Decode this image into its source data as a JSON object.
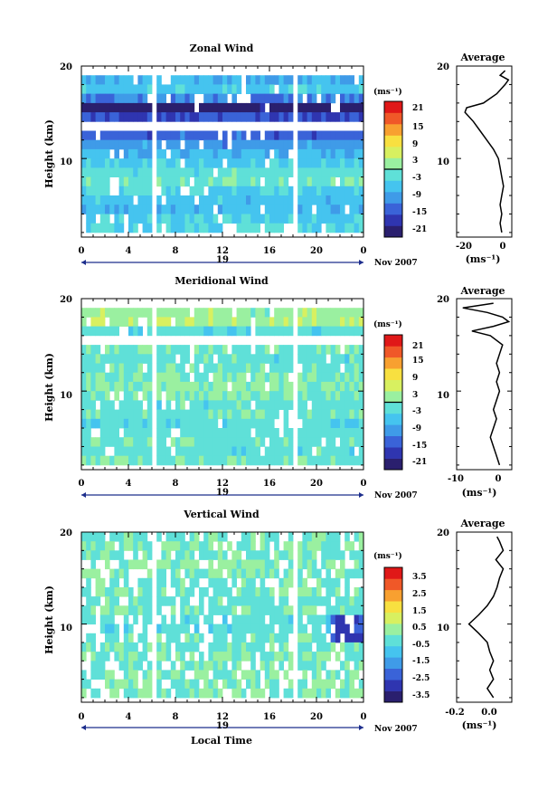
{
  "panels": [
    {
      "title": "Zonal Wind",
      "ylabel": "Height (km)",
      "date_label": "Nov 2007",
      "day_label": "19",
      "x_ticks": [
        "0",
        "4",
        "8",
        "12",
        "16",
        "20",
        "0"
      ],
      "y_ticks": [
        "20",
        "10"
      ],
      "colorbar": {
        "unit": "(ms⁻¹)",
        "ticks": [
          "21",
          "15",
          "9",
          "3",
          "-3",
          "-9",
          "-15",
          "-21"
        ]
      },
      "profile": {
        "title": "Average",
        "x_ticks": [
          "-20",
          "0"
        ],
        "y_ticks": [
          "20",
          "10"
        ],
        "xlabel": "(ms⁻¹)"
      }
    },
    {
      "title": "Meridional Wind",
      "ylabel": "Height (km)",
      "date_label": "Nov 2007",
      "day_label": "19",
      "x_ticks": [
        "0",
        "4",
        "8",
        "12",
        "16",
        "20",
        "0"
      ],
      "y_ticks": [
        "20",
        "10"
      ],
      "colorbar": {
        "unit": "(ms⁻¹)",
        "ticks": [
          "21",
          "15",
          "9",
          "3",
          "-3",
          "-9",
          "-15",
          "-21"
        ]
      },
      "profile": {
        "title": "Average",
        "x_ticks": [
          "-10",
          "0"
        ],
        "y_ticks": [
          "20",
          "10"
        ],
        "xlabel": "(ms⁻¹)"
      }
    },
    {
      "title": "Vertical Wind",
      "ylabel": "Height (km)",
      "date_label": "Nov 2007",
      "day_label": "19",
      "x_ticks": [
        "0",
        "4",
        "8",
        "12",
        "16",
        "20",
        "0"
      ],
      "y_ticks": [
        "20",
        "10"
      ],
      "colorbar": {
        "unit": "(ms⁻¹)",
        "ticks": [
          "3.5",
          "2.5",
          "1.5",
          "0.5",
          "-0.5",
          "-1.5",
          "-2.5",
          "-3.5"
        ]
      },
      "profile": {
        "title": "Average",
        "x_ticks": [
          "-0.2",
          "0.0"
        ],
        "y_ticks": [
          "20",
          "10"
        ],
        "xlabel": "(ms⁻¹)"
      }
    }
  ],
  "xlabel": "Local Time",
  "colormap": [
    "#2a1f6e",
    "#2f35b0",
    "#3a63d8",
    "#3f9be8",
    "#45c4ef",
    "#5fe0d8",
    "#9af0a0",
    "#d8f060",
    "#f8e040",
    "#f8a030",
    "#f05828",
    "#e01818"
  ],
  "chart_data": [
    {
      "type": "heatmap",
      "title": "Zonal Wind",
      "xlabel": "",
      "ylabel": "Height (km)",
      "x_range": [
        0,
        24
      ],
      "y_range": [
        1.5,
        20
      ],
      "color_range": [
        -24,
        24
      ],
      "units": "ms-1",
      "gaps_hours": [
        [
          6.0,
          6.4
        ],
        [
          18.0,
          18.4
        ]
      ],
      "rows": [
        {
          "height": 18.5,
          "value": -8
        },
        {
          "height": 17.5,
          "value": -5
        },
        {
          "height": 16.5,
          "value": -12
        },
        {
          "height": 15.5,
          "value": -22
        },
        {
          "height": 14.5,
          "value": -16
        },
        {
          "height": 12.5,
          "value": -14
        },
        {
          "height": 11.5,
          "value": -10
        },
        {
          "height": 10.5,
          "value": -7
        },
        {
          "height": 9.5,
          "value": -5
        },
        {
          "height": 8.5,
          "value": -2
        },
        {
          "height": 7.5,
          "value": -1
        },
        {
          "height": 6.5,
          "value": -4
        },
        {
          "height": 5.5,
          "value": -6
        },
        {
          "height": 4.5,
          "value": -7
        },
        {
          "height": 3.5,
          "value": -5
        },
        {
          "height": 2.5,
          "value": -4
        }
      ]
    },
    {
      "type": "line",
      "title": "Average",
      "xlabel": "(ms⁻¹)",
      "ylabel": "",
      "x_range": [
        -28,
        5
      ],
      "y_range": [
        1.5,
        20
      ],
      "points": [
        {
          "x": -1,
          "y": 2
        },
        {
          "x": -2,
          "y": 3
        },
        {
          "x": -1,
          "y": 4
        },
        {
          "x": -2,
          "y": 5
        },
        {
          "x": -1,
          "y": 6
        },
        {
          "x": 0,
          "y": 7
        },
        {
          "x": -1,
          "y": 8
        },
        {
          "x": -2,
          "y": 9
        },
        {
          "x": -3,
          "y": 10
        },
        {
          "x": -6,
          "y": 11
        },
        {
          "x": -10,
          "y": 12
        },
        {
          "x": -14,
          "y": 13
        },
        {
          "x": -18,
          "y": 14
        },
        {
          "x": -23,
          "y": 15
        },
        {
          "x": -22,
          "y": 15.5
        },
        {
          "x": -12,
          "y": 16
        },
        {
          "x": -4,
          "y": 17
        },
        {
          "x": 1,
          "y": 18
        },
        {
          "x": 3,
          "y": 18.5
        },
        {
          "x": -2,
          "y": 19
        },
        {
          "x": 1,
          "y": 19.5
        }
      ]
    },
    {
      "type": "heatmap",
      "title": "Meridional Wind",
      "xlabel": "",
      "ylabel": "Height (km)",
      "x_range": [
        0,
        24
      ],
      "y_range": [
        1.5,
        20
      ],
      "color_range": [
        -24,
        24
      ],
      "units": "ms-1",
      "gaps_hours": [
        [
          6.0,
          6.4
        ],
        [
          18.0,
          18.4
        ]
      ],
      "rows": [
        {
          "height": 18.5,
          "value": 2
        },
        {
          "height": 17.5,
          "value": 3
        },
        {
          "height": 16.5,
          "value": -3
        },
        {
          "height": 14.5,
          "value": -1
        },
        {
          "height": 13.5,
          "value": -2
        },
        {
          "height": 12.5,
          "value": -1
        },
        {
          "height": 11.5,
          "value": 0
        },
        {
          "height": 10.5,
          "value": 1
        },
        {
          "height": 9.5,
          "value": 0
        },
        {
          "height": 8.5,
          "value": -2
        },
        {
          "height": 7.5,
          "value": -1
        },
        {
          "height": 6.5,
          "value": -3
        },
        {
          "height": 5.5,
          "value": -2
        },
        {
          "height": 4.5,
          "value": -1
        },
        {
          "height": 3.5,
          "value": -2
        },
        {
          "height": 2.5,
          "value": -1
        }
      ]
    },
    {
      "type": "line",
      "title": "Average",
      "xlabel": "(ms⁻¹)",
      "ylabel": "",
      "x_range": [
        -14,
        4
      ],
      "y_range": [
        1.5,
        20
      ],
      "points": [
        {
          "x": 0,
          "y": 2
        },
        {
          "x": -1,
          "y": 3
        },
        {
          "x": -2,
          "y": 4
        },
        {
          "x": -3,
          "y": 5
        },
        {
          "x": -2,
          "y": 6
        },
        {
          "x": -1,
          "y": 7
        },
        {
          "x": -2,
          "y": 8
        },
        {
          "x": -1,
          "y": 9
        },
        {
          "x": 0,
          "y": 10
        },
        {
          "x": -1,
          "y": 11
        },
        {
          "x": 0,
          "y": 12
        },
        {
          "x": -1,
          "y": 13
        },
        {
          "x": 0,
          "y": 14
        },
        {
          "x": 1,
          "y": 15
        },
        {
          "x": -3,
          "y": 16
        },
        {
          "x": -9,
          "y": 16.5
        },
        {
          "x": -2,
          "y": 17
        },
        {
          "x": 3,
          "y": 17.5
        },
        {
          "x": 1,
          "y": 18
        },
        {
          "x": -4,
          "y": 18.5
        },
        {
          "x": -12,
          "y": 19
        },
        {
          "x": -2,
          "y": 19.5
        }
      ]
    },
    {
      "type": "heatmap",
      "title": "Vertical Wind",
      "xlabel": "Local Time",
      "ylabel": "Height (km)",
      "x_range": [
        0,
        24
      ],
      "y_range": [
        1.5,
        20
      ],
      "color_range": [
        -4,
        4
      ],
      "units": "ms-1",
      "gaps_hours": [
        [
          6.0,
          6.4
        ],
        [
          18.0,
          18.4
        ]
      ],
      "rows": [
        {
          "height": 19.5,
          "value": -0.2
        },
        {
          "height": 18.5,
          "value": 0
        },
        {
          "height": 17.5,
          "value": -0.1
        },
        {
          "height": 16.5,
          "value": 0.1
        },
        {
          "height": 15.5,
          "value": 0
        },
        {
          "height": 14.5,
          "value": -0.2
        },
        {
          "height": 13.5,
          "value": -0.1
        },
        {
          "height": 12.5,
          "value": -0.3
        },
        {
          "height": 11.5,
          "value": -0.2
        },
        {
          "height": 10.5,
          "value": -0.4
        },
        {
          "height": 9.5,
          "value": -0.5
        },
        {
          "height": 8.5,
          "value": -0.2
        },
        {
          "height": 7.5,
          "value": -0.1
        },
        {
          "height": 6.5,
          "value": 0
        },
        {
          "height": 5.5,
          "value": -0.1
        },
        {
          "height": 4.5,
          "value": 0
        },
        {
          "height": 3.5,
          "value": -0.1
        },
        {
          "height": 2.5,
          "value": 0
        }
      ],
      "anomaly": {
        "time_range": [
          21,
          24
        ],
        "height_range": [
          8.5,
          11
        ],
        "value": -2.8
      }
    },
    {
      "type": "line",
      "title": "Average",
      "xlabel": "(ms⁻¹)",
      "ylabel": "",
      "x_range": [
        -0.3,
        0.15
      ],
      "y_range": [
        1.5,
        20
      ],
      "points": [
        {
          "x": 0.0,
          "y": 2
        },
        {
          "x": -0.05,
          "y": 3
        },
        {
          "x": 0.0,
          "y": 4
        },
        {
          "x": -0.03,
          "y": 5
        },
        {
          "x": 0.0,
          "y": 6
        },
        {
          "x": -0.03,
          "y": 7
        },
        {
          "x": -0.05,
          "y": 8
        },
        {
          "x": -0.12,
          "y": 9
        },
        {
          "x": -0.2,
          "y": 10
        },
        {
          "x": -0.12,
          "y": 11
        },
        {
          "x": -0.05,
          "y": 12
        },
        {
          "x": 0.0,
          "y": 13
        },
        {
          "x": 0.03,
          "y": 14
        },
        {
          "x": 0.05,
          "y": 15
        },
        {
          "x": 0.08,
          "y": 16
        },
        {
          "x": 0.02,
          "y": 17
        },
        {
          "x": 0.08,
          "y": 18
        },
        {
          "x": 0.05,
          "y": 19
        },
        {
          "x": 0.03,
          "y": 19.5
        }
      ]
    }
  ]
}
